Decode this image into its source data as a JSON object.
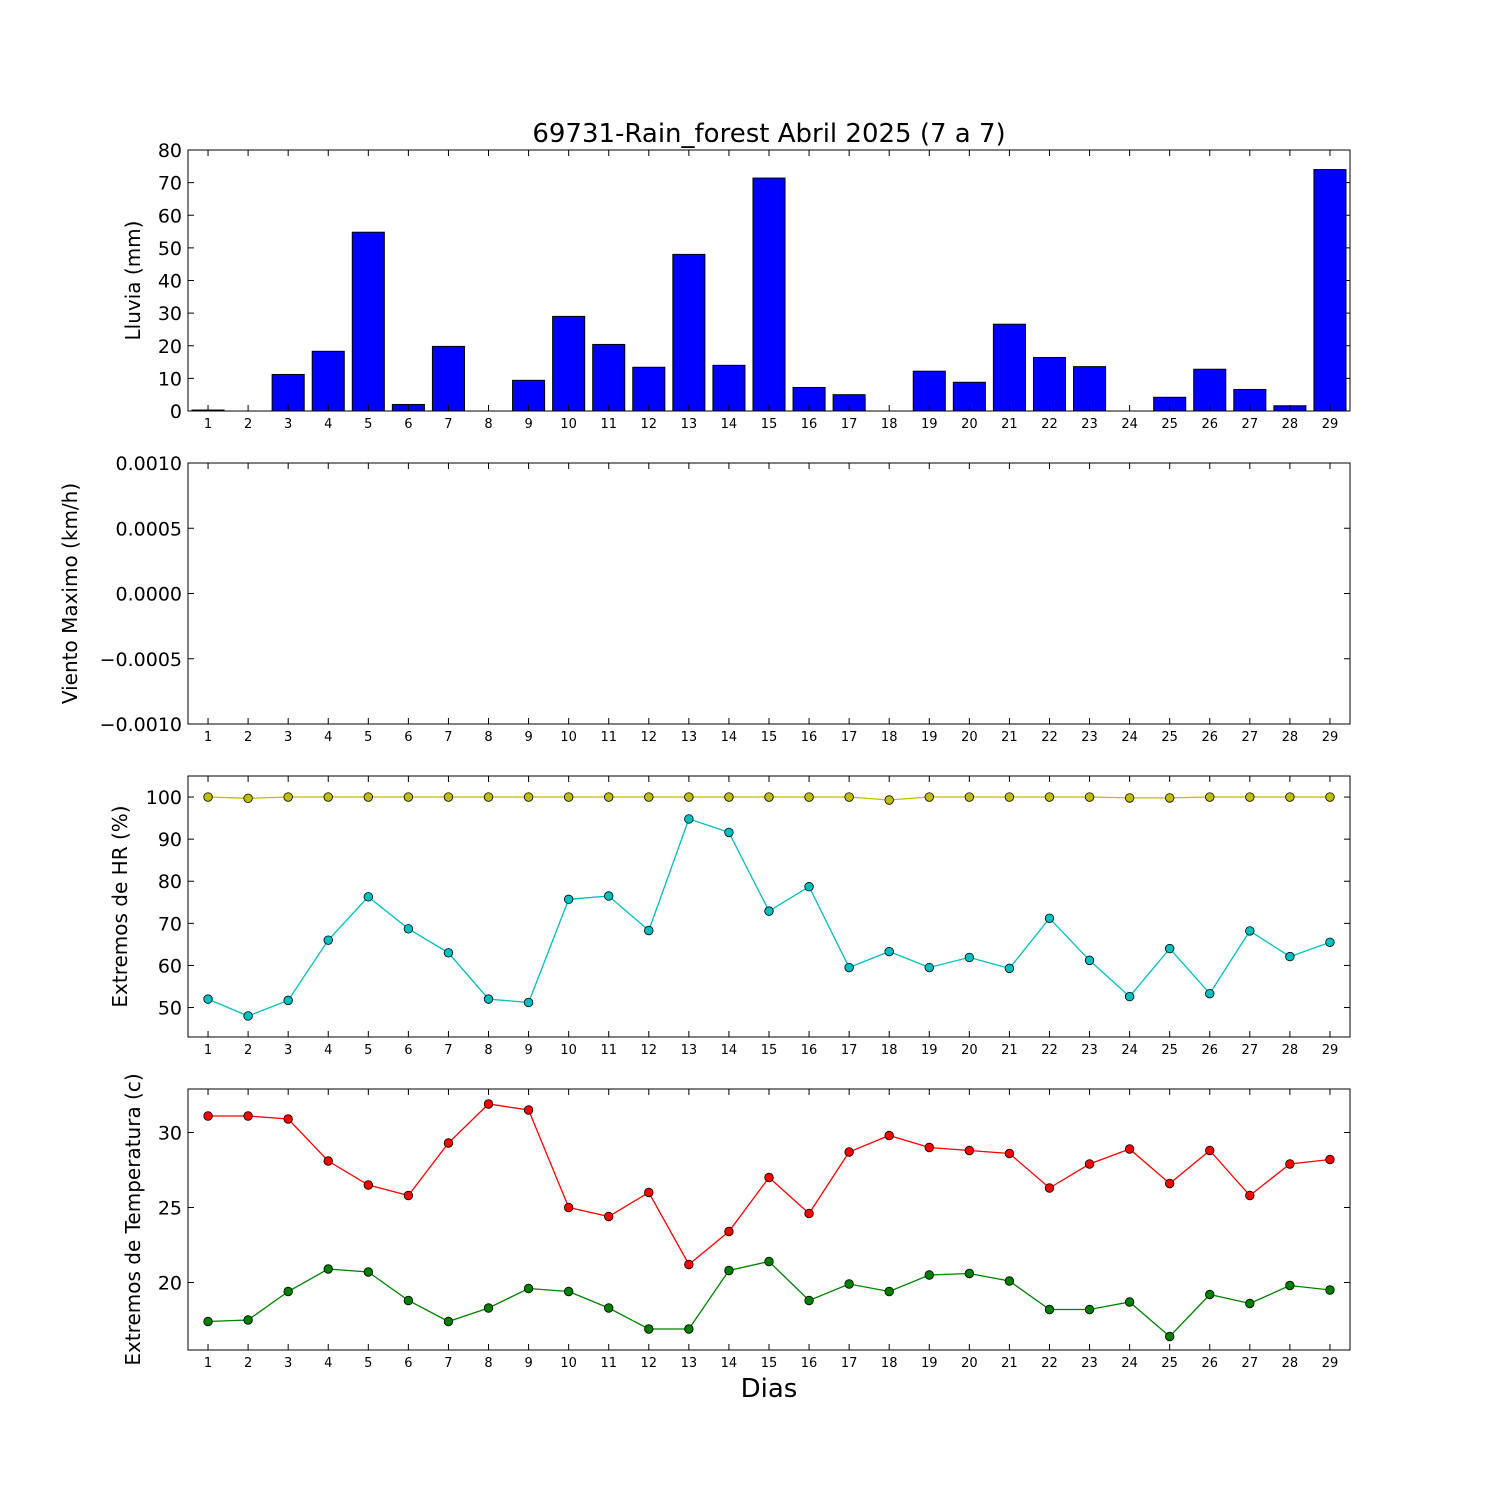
{
  "title": "69731-Rain_forest Abril 2025  (7 a 7)",
  "xlabel": "Dias",
  "chart_data": [
    {
      "type": "bar",
      "ylabel": "Lluvia (mm)",
      "ylim": [
        0,
        80
      ],
      "yticks": [
        "0",
        "10",
        "20",
        "30",
        "40",
        "50",
        "60",
        "70",
        "80"
      ],
      "categories": [
        1,
        2,
        3,
        4,
        5,
        6,
        7,
        8,
        9,
        10,
        11,
        12,
        13,
        14,
        15,
        16,
        17,
        18,
        19,
        20,
        21,
        22,
        23,
        24,
        25,
        26,
        27,
        28,
        29
      ],
      "series": [
        {
          "color": "#0000ff",
          "values": [
            0.3,
            0,
            11.2,
            18.3,
            54.8,
            2.0,
            19.8,
            0,
            9.4,
            29.0,
            20.4,
            13.4,
            48.0,
            14.0,
            71.4,
            7.2,
            5.0,
            0,
            12.2,
            8.8,
            26.6,
            16.4,
            13.6,
            0,
            4.2,
            12.8,
            6.6,
            1.6,
            74.0
          ]
        }
      ]
    },
    {
      "type": "line",
      "ylabel": "Viento Maximo (km/h)",
      "ylim": [
        -0.001,
        0.001
      ],
      "yticks": [
        "−0.0010",
        "−0.0005",
        "0.0000",
        "0.0005",
        "0.0010"
      ],
      "x": [
        1,
        2,
        3,
        4,
        5,
        6,
        7,
        8,
        9,
        10,
        11,
        12,
        13,
        14,
        15,
        16,
        17,
        18,
        19,
        20,
        21,
        22,
        23,
        24,
        25,
        26,
        27,
        28,
        29
      ],
      "series": []
    },
    {
      "type": "line",
      "ylabel": "Extremos de HR (%)",
      "ylim": [
        43,
        105
      ],
      "yticks": [
        "50",
        "60",
        "70",
        "80",
        "90",
        "100"
      ],
      "x": [
        1,
        2,
        3,
        4,
        5,
        6,
        7,
        8,
        9,
        10,
        11,
        12,
        13,
        14,
        15,
        16,
        17,
        18,
        19,
        20,
        21,
        22,
        23,
        24,
        25,
        26,
        27,
        28,
        29
      ],
      "series": [
        {
          "color": "#bfbf00",
          "values": [
            100,
            99.7,
            100,
            100,
            100,
            100,
            100,
            100,
            100,
            100,
            100,
            100,
            100,
            100,
            100,
            100,
            100,
            99.3,
            100,
            100,
            100,
            100,
            100,
            99.8,
            99.8,
            100,
            100,
            100,
            100
          ]
        },
        {
          "color": "#00bfbf",
          "values": [
            52,
            48,
            51.7,
            66,
            76.3,
            68.7,
            63,
            52,
            51.2,
            75.7,
            76.5,
            68.3,
            94.8,
            91.6,
            72.9,
            78.7,
            59.5,
            63.3,
            59.5,
            61.9,
            59.3,
            71.2,
            61.2,
            52.6,
            64,
            53.3,
            68.2,
            62.1,
            65.5
          ]
        }
      ]
    },
    {
      "type": "line",
      "ylabel": "Extremos de Temperatura (c)",
      "ylim": [
        15.5,
        32.9
      ],
      "yticks": [
        "20",
        "25",
        "30"
      ],
      "x": [
        1,
        2,
        3,
        4,
        5,
        6,
        7,
        8,
        9,
        10,
        11,
        12,
        13,
        14,
        15,
        16,
        17,
        18,
        19,
        20,
        21,
        22,
        23,
        24,
        25,
        26,
        27,
        28,
        29
      ],
      "series": [
        {
          "color": "#ff0000",
          "values": [
            31.1,
            31.1,
            30.9,
            28.1,
            26.5,
            25.8,
            29.3,
            31.9,
            31.5,
            25.0,
            24.4,
            26.0,
            21.2,
            23.4,
            27.0,
            24.6,
            28.7,
            29.8,
            29.0,
            28.8,
            28.6,
            26.3,
            27.9,
            28.9,
            26.6,
            28.8,
            25.8,
            27.9,
            28.2
          ]
        },
        {
          "color": "#008000",
          "values": [
            17.4,
            17.5,
            19.4,
            20.9,
            20.7,
            18.8,
            17.4,
            18.3,
            19.6,
            19.4,
            18.3,
            16.9,
            16.9,
            20.8,
            21.4,
            18.8,
            19.9,
            19.4,
            20.5,
            20.6,
            20.1,
            18.2,
            18.2,
            18.7,
            16.4,
            19.2,
            18.6,
            19.8,
            19.5
          ]
        }
      ]
    }
  ]
}
